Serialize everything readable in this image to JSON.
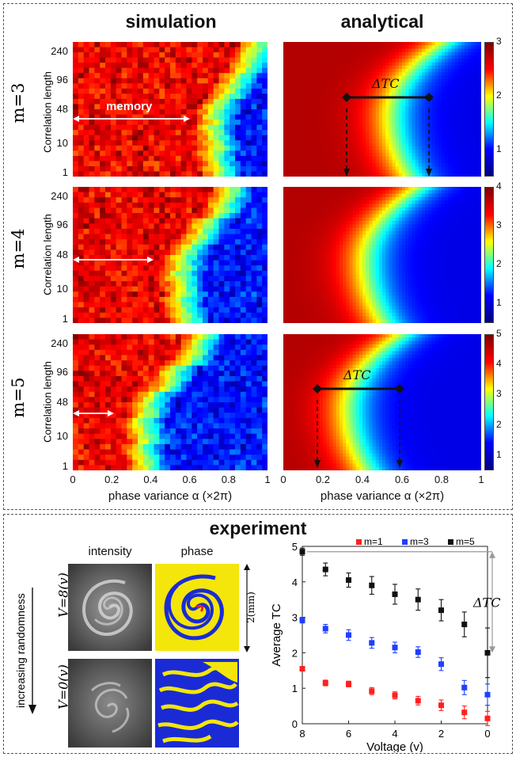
{
  "headers": {
    "simulation": "simulation",
    "analytical": "analytical"
  },
  "rows": [
    {
      "label": "m=3",
      "cbar_max": 3,
      "cbar_ticks": [
        "3",
        "2",
        "1"
      ]
    },
    {
      "label": "m=4",
      "cbar_max": 4,
      "cbar_ticks": [
        "4",
        "3",
        "2",
        "1"
      ]
    },
    {
      "label": "m=5",
      "cbar_max": 5,
      "cbar_ticks": [
        "5",
        "4",
        "3",
        "2",
        "1"
      ]
    }
  ],
  "y_axis_label": "Correlation length",
  "y_ticks": [
    "240",
    "96",
    "48",
    "10",
    "1"
  ],
  "x_ticks": [
    "0",
    "0.2",
    "0.4",
    "0.6",
    "0.8",
    "1"
  ],
  "x_axis_label": "phase variance α (×2π)",
  "annotations": {
    "memory": "memory",
    "delta_tc": "ΔTC"
  },
  "experiment": {
    "title": "experiment",
    "intensity_label": "intensity",
    "phase_label": "phase",
    "randomness_label": "increasing randomness",
    "v_top": "V=8(v)",
    "v_bottom": "V=0(v)",
    "scale_label": "2(mm)"
  },
  "colors": {
    "jet_low": "#00008f",
    "jet_high": "#800000",
    "m1": "#ff2020",
    "m3": "#1f3fff",
    "m5": "#111111"
  },
  "chart_data": [
    {
      "type": "heatmap",
      "title": "simulation / analytical maps",
      "xlabel": "phase variance α (×2π)",
      "ylabel": "Correlation length",
      "xlim": [
        0,
        1
      ],
      "y_ticks": [
        1,
        10,
        48,
        96,
        240
      ],
      "panels": [
        {
          "name": "simulation m=3",
          "memory_edge": 0.6,
          "boundary": [
            0.72,
            0.8,
            0.86,
            0.92,
            0.97
          ]
        },
        {
          "name": "analytical m=3",
          "cbar_range": [
            0.5,
            3
          ],
          "delta_tc": [
            0.33,
            0.76
          ]
        },
        {
          "name": "simulation m=4",
          "memory_edge": 0.42,
          "boundary": [
            0.55,
            0.62,
            0.7,
            0.78,
            0.86
          ]
        },
        {
          "name": "analytical m=4",
          "cbar_range": [
            0.5,
            4
          ]
        },
        {
          "name": "simulation m=5",
          "memory_edge": 0.2,
          "boundary": [
            0.35,
            0.45,
            0.55,
            0.65,
            0.75
          ]
        },
        {
          "name": "analytical m=5",
          "cbar_range": [
            0.5,
            5
          ],
          "delta_tc": [
            0.18,
            0.6
          ]
        }
      ]
    },
    {
      "type": "scatter",
      "xlabel": "Voltage (v)",
      "ylabel": "Average TC",
      "xlim": [
        8,
        0
      ],
      "ylim": [
        0,
        5
      ],
      "x_ticks": [
        8,
        6,
        4,
        2,
        0
      ],
      "y_ticks": [
        0,
        1,
        2,
        3,
        4,
        5
      ],
      "legend_position": "top",
      "delta_tc_label": "ΔTC",
      "series": [
        {
          "name": "m=1",
          "color": "#ff2020",
          "x": [
            8,
            7,
            6,
            5,
            4,
            3,
            2,
            1,
            0
          ],
          "y": [
            1.55,
            1.15,
            1.12,
            0.92,
            0.8,
            0.65,
            0.52,
            0.32,
            0.15
          ],
          "err": [
            0.05,
            0.08,
            0.08,
            0.1,
            0.1,
            0.12,
            0.15,
            0.18,
            0.2
          ]
        },
        {
          "name": "m=3",
          "color": "#1f3fff",
          "x": [
            8,
            7,
            6,
            5,
            4,
            3,
            2,
            1,
            0
          ],
          "y": [
            2.92,
            2.68,
            2.5,
            2.28,
            2.15,
            2.02,
            1.68,
            1.02,
            0.82
          ],
          "err": [
            0.08,
            0.12,
            0.15,
            0.15,
            0.15,
            0.15,
            0.18,
            0.2,
            0.3
          ]
        },
        {
          "name": "m=5",
          "color": "#111111",
          "x": [
            8,
            7,
            6,
            5,
            4,
            3,
            2,
            1,
            0
          ],
          "y": [
            4.85,
            4.35,
            4.05,
            3.9,
            3.65,
            3.5,
            3.2,
            2.8,
            2.0
          ],
          "err": [
            0.1,
            0.18,
            0.2,
            0.25,
            0.28,
            0.3,
            0.3,
            0.35,
            0.7
          ]
        }
      ]
    }
  ]
}
